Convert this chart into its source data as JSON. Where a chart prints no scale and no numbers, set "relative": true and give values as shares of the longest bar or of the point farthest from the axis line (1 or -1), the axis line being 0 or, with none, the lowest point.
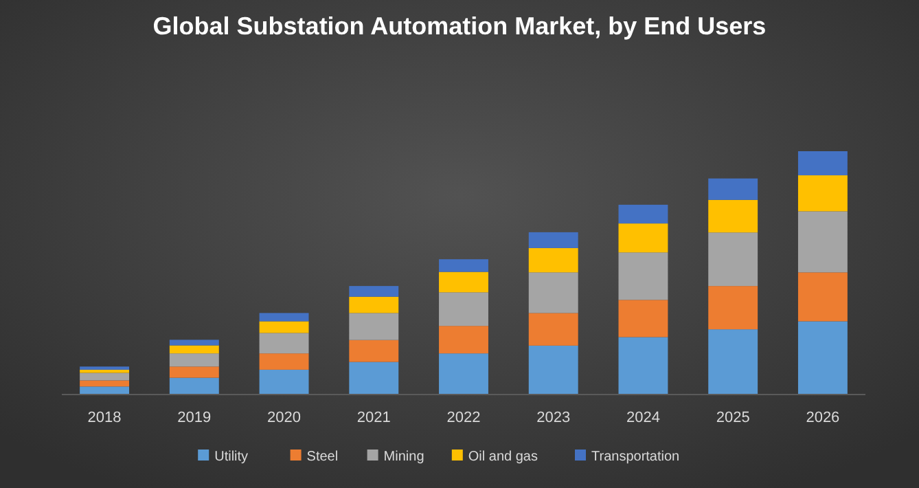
{
  "chart_data": {
    "type": "bar",
    "title": "Global Substation Automation Market, by End Users",
    "relative": true,
    "stacked": true,
    "legend": "bottom",
    "categories": [
      "2018",
      "2019",
      "2020",
      "2021",
      "2022",
      "2023",
      "2024",
      "2025",
      "2026"
    ],
    "series": [
      {
        "name": "Utility",
        "color": "#5b9bd5",
        "values": [
          0.033,
          0.069,
          0.102,
          0.134,
          0.169,
          0.201,
          0.236,
          0.268,
          0.301
        ]
      },
      {
        "name": "Steel",
        "color": "#ed7d31",
        "values": [
          0.025,
          0.046,
          0.067,
          0.09,
          0.113,
          0.134,
          0.153,
          0.178,
          0.201
        ]
      },
      {
        "name": "Mining",
        "color": "#a5a5a5",
        "values": [
          0.031,
          0.054,
          0.084,
          0.111,
          0.138,
          0.167,
          0.195,
          0.22,
          0.251
        ]
      },
      {
        "name": "Oil and gas",
        "color": "#ffc000",
        "values": [
          0.013,
          0.033,
          0.048,
          0.067,
          0.084,
          0.1,
          0.119,
          0.134,
          0.148
        ]
      },
      {
        "name": "Transportation",
        "color": "#4472c4",
        "values": [
          0.013,
          0.023,
          0.034,
          0.044,
          0.052,
          0.065,
          0.077,
          0.088,
          0.099
        ]
      }
    ]
  }
}
